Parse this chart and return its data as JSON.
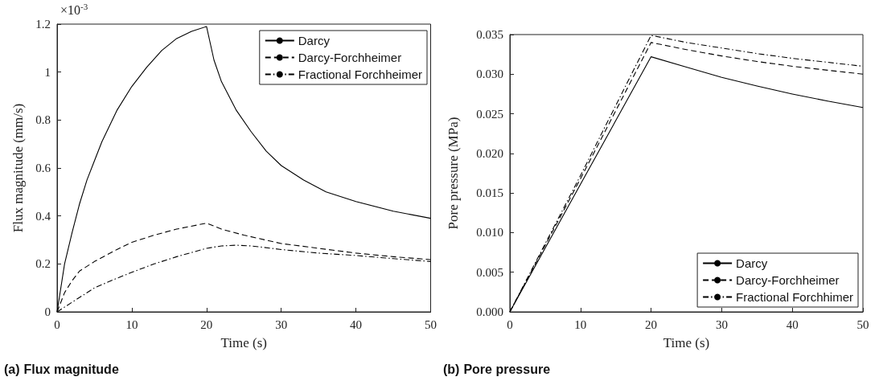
{
  "chart_data": [
    {
      "type": "line",
      "title": "(a) Flux magnitude",
      "xlabel": "Time (s)",
      "ylabel": "Flux magnitude (mm/s)",
      "annotations": [
        "×10$^{-3}$"
      ],
      "legend": "top right",
      "xlim": [
        0,
        50
      ],
      "xticks": [
        0,
        10,
        20,
        30,
        40,
        50
      ],
      "ylim": [
        0,
        1.2
      ],
      "yticks": [
        0,
        0.2,
        0.4,
        0.6,
        0.8,
        1,
        1.2
      ],
      "series": [
        {
          "name": "Darcy",
          "color": "#000000",
          "line_style": "solid",
          "x": [
            0,
            1,
            2,
            3,
            4,
            5,
            6,
            8,
            10,
            12,
            14,
            16,
            18,
            20,
            21,
            22,
            24,
            26,
            28,
            30,
            33,
            36,
            40,
            45,
            50
          ],
          "values": [
            0,
            0.2,
            0.33,
            0.45,
            0.55,
            0.63,
            0.71,
            0.84,
            0.94,
            1.02,
            1.09,
            1.14,
            1.17,
            1.19,
            1.05,
            0.96,
            0.84,
            0.75,
            0.67,
            0.61,
            0.55,
            0.5,
            0.46,
            0.42,
            0.39
          ]
        },
        {
          "name": "Darcy-Forchheimer",
          "color": "#000000",
          "line_style": "dashed",
          "x": [
            0,
            1,
            2,
            3,
            5,
            8,
            10,
            13,
            16,
            20,
            22,
            25,
            30,
            35,
            40,
            45,
            50
          ],
          "values": [
            0,
            0.08,
            0.13,
            0.17,
            0.21,
            0.26,
            0.29,
            0.32,
            0.345,
            0.37,
            0.345,
            0.32,
            0.285,
            0.265,
            0.245,
            0.23,
            0.218
          ]
        },
        {
          "name": "Fractional Forchheimer",
          "color": "#000000",
          "line_style": "dashdot",
          "x": [
            0,
            2,
            5,
            8,
            10,
            13,
            16,
            20,
            22,
            24,
            26,
            30,
            35,
            40,
            45,
            50
          ],
          "values": [
            0,
            0.04,
            0.1,
            0.14,
            0.165,
            0.2,
            0.23,
            0.265,
            0.275,
            0.278,
            0.275,
            0.26,
            0.245,
            0.235,
            0.222,
            0.21
          ]
        }
      ]
    },
    {
      "type": "line",
      "title": "(b) Pore pressure",
      "xlabel": "Time (s)",
      "ylabel": "Pore pressure (MPa)",
      "legend": "bottom right",
      "xlim": [
        0,
        50
      ],
      "xticks": [
        0,
        10,
        20,
        30,
        40,
        50
      ],
      "ylim": [
        0,
        0.035
      ],
      "yticks": [
        {
          "value": 0,
          "label": "0.000"
        },
        0.005,
        {
          "value": 0.01,
          "label": "0.010"
        },
        0.015,
        {
          "value": 0.02,
          "label": "0.020"
        },
        0.025,
        {
          "value": 0.03,
          "label": "0.030"
        },
        0.035
      ],
      "series": [
        {
          "name": "Darcy",
          "color": "#000000",
          "line_style": "solid",
          "x": [
            0,
            10,
            20,
            25,
            30,
            35,
            40,
            45,
            50
          ],
          "values": [
            0,
            0.0161,
            0.0322,
            0.0309,
            0.0296,
            0.0285,
            0.0275,
            0.0266,
            0.0258
          ]
        },
        {
          "name": "Darcy-Forchheimer",
          "color": "#000000",
          "line_style": "dashed",
          "x": [
            0,
            10,
            20,
            25,
            30,
            35,
            40,
            45,
            50
          ],
          "values": [
            0,
            0.0168,
            0.034,
            0.0331,
            0.0323,
            0.0316,
            0.031,
            0.0305,
            0.03
          ]
        },
        {
          "name": "Fractional Forchhimer",
          "color": "#000000",
          "line_style": "dashdot",
          "x": [
            0,
            10,
            20,
            25,
            30,
            35,
            40,
            45,
            50
          ],
          "values": [
            0,
            0.0172,
            0.0349,
            0.034,
            0.0333,
            0.0326,
            0.032,
            0.0315,
            0.031
          ]
        }
      ]
    }
  ]
}
